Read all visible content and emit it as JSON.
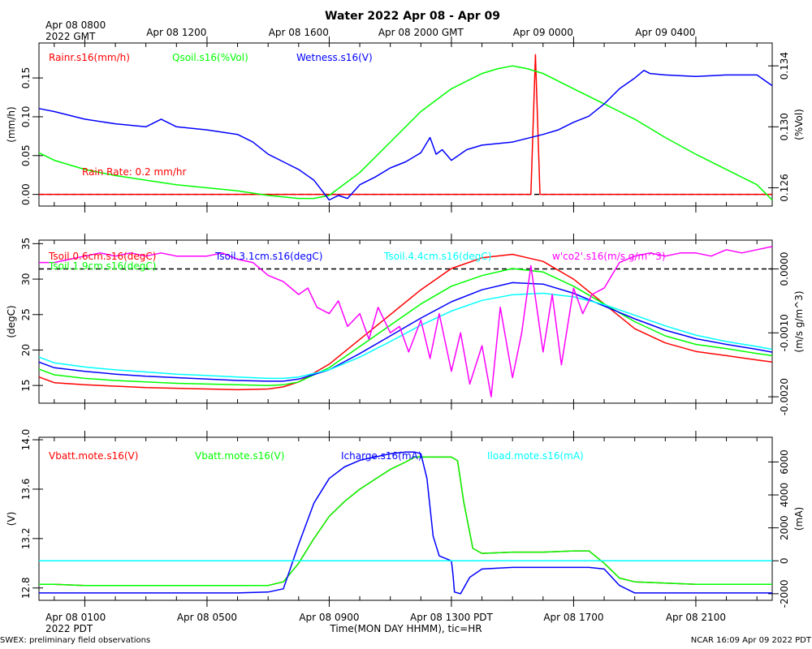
{
  "header": {
    "title": "Water 2022 Apr 08 - Apr 09",
    "top_first_tick_line1": "Apr 08 0800",
    "top_first_tick_line2": "2022 GMT",
    "bottom_first_tick_line2": "2022 PDT",
    "xlabel": "Time(MON DAY HHMM), tic=HR"
  },
  "footer": {
    "left": "SWEX: preliminary field observations",
    "right": "NCAR 16:09 Apr 09 2022 PDT"
  },
  "colors": {
    "red": "#ff0000",
    "green": "#00ff00",
    "blue": "#0000ff",
    "cyan": "#00ffff",
    "magenta": "#ff00ff"
  },
  "chart_data": [
    {
      "type": "line",
      "title": "Rain / soil moisture / wetness",
      "x_unit": "hours since Apr 08 0000 PDT",
      "xlim": [
        -0.5,
        23.5
      ],
      "top_ticks": [
        {
          "x": 4,
          "label": "Apr 08 1200"
        },
        {
          "x": 8,
          "label": "Apr 08 1600"
        },
        {
          "x": 12,
          "label": "Apr 08 2000 GMT"
        },
        {
          "x": 16,
          "label": "Apr 09 0000"
        },
        {
          "x": 20,
          "label": "Apr 09 0400"
        }
      ],
      "left_axis": {
        "label": "(mm/h)",
        "ylim": [
          -0.015,
          0.195
        ],
        "ticks": [
          "0.00",
          "0.05",
          "0.10",
          "0.15"
        ]
      },
      "right_axis": {
        "label": "(%Vol)",
        "ylim": [
          0.1248,
          0.1355
        ],
        "ticks": [
          "0.126",
          "0.130",
          "0.134"
        ]
      },
      "annotation": "Rain Rate: 0.2 mm/hr",
      "series": [
        {
          "name": "Rainr.s16(mm/h)",
          "color": "red",
          "axis": "left",
          "x": [
            -0.5,
            15.6,
            15.75,
            15.9,
            23.5
          ],
          "y": [
            0,
            0,
            0.18,
            0,
            0
          ]
        },
        {
          "name": "Qsoil.s16(%Vol)",
          "color": "green",
          "axis": "right",
          "x": [
            -0.5,
            0,
            1,
            2,
            3,
            4,
            5,
            6,
            7,
            8,
            8.5,
            9,
            10,
            11,
            12,
            13,
            14,
            14.5,
            15,
            15.5,
            16,
            17,
            18,
            19,
            20,
            21,
            22,
            23,
            23.5
          ],
          "y": [
            0.1283,
            0.1278,
            0.1272,
            0.1268,
            0.1265,
            0.1262,
            0.126,
            0.1258,
            0.1255,
            0.1253,
            0.1253,
            0.1255,
            0.127,
            0.129,
            0.131,
            0.1325,
            0.1335,
            0.1338,
            0.134,
            0.1338,
            0.1335,
            0.1325,
            0.1315,
            0.1305,
            0.1293,
            0.1282,
            0.1272,
            0.1262,
            0.1252
          ]
        },
        {
          "name": "Wetness.s16(V)",
          "color": "blue",
          "axis": "right",
          "x": [
            -0.5,
            0,
            1,
            2,
            3,
            3.5,
            4,
            5,
            6,
            6.5,
            7,
            7.5,
            8,
            8.5,
            9,
            9.3,
            9.6,
            10,
            10.5,
            11,
            11.5,
            12,
            12.3,
            12.5,
            12.7,
            13,
            13.5,
            14,
            15,
            16,
            16.5,
            17,
            17.5,
            18,
            18.5,
            19,
            19.3,
            19.5,
            20,
            21,
            22,
            22.5,
            23,
            23.5
          ],
          "y": [
            0.1312,
            0.131,
            0.1305,
            0.1302,
            0.13,
            0.1305,
            0.13,
            0.1298,
            0.1295,
            0.129,
            0.1282,
            0.1277,
            0.1272,
            0.1265,
            0.1252,
            0.1255,
            0.1253,
            0.1262,
            0.1267,
            0.1273,
            0.1277,
            0.1283,
            0.1293,
            0.1282,
            0.1285,
            0.1278,
            0.1285,
            0.1288,
            0.129,
            0.1295,
            0.1298,
            0.1303,
            0.1307,
            0.1315,
            0.1325,
            0.1332,
            0.1337,
            0.1335,
            0.1334,
            0.1333,
            0.1334,
            0.1334,
            0.1334,
            0.1327
          ]
        }
      ],
      "dashed_zero": {
        "axis": "left",
        "y": 0
      }
    },
    {
      "type": "line",
      "title": "Soil temperature / co2 flux",
      "x_unit": "hours since Apr 08 0000 PDT",
      "xlim": [
        -0.5,
        23.5
      ],
      "left_axis": {
        "label": "(degC)",
        "ylim": [
          12.5,
          35.5
        ],
        "ticks": [
          "15",
          "20",
          "25",
          "30",
          "35"
        ]
      },
      "right_axis": {
        "label": "(m/s g/m^3)",
        "ylim": [
          -0.0021,
          0.00045
        ],
        "ticks": [
          "-0.0020",
          "-0.0010",
          "0.0000"
        ]
      },
      "series": [
        {
          "name": "Tsoil.0.6cm.s16(degC)",
          "color": "red",
          "axis": "left",
          "x": [
            -0.5,
            0,
            1,
            2,
            3,
            4,
            5,
            6,
            7,
            7.5,
            8,
            9,
            10,
            11,
            12,
            13,
            14,
            15,
            16,
            17,
            18,
            19,
            20,
            21,
            22,
            23,
            23.5
          ],
          "y": [
            16.2,
            15.4,
            15.1,
            14.9,
            14.7,
            14.6,
            14.5,
            14.4,
            14.5,
            14.8,
            15.5,
            18,
            21.5,
            25,
            28.5,
            31.5,
            33,
            33.5,
            32.5,
            30,
            26.5,
            23,
            21,
            19.8,
            19.2,
            18.6,
            18.3
          ]
        },
        {
          "name": "Tsoil.1.9cm.s16(degC)",
          "color": "green",
          "axis": "left",
          "x": [
            -0.5,
            0,
            1,
            2,
            3,
            4,
            5,
            6,
            7,
            7.5,
            8,
            9,
            10,
            11,
            12,
            13,
            14,
            15,
            16,
            17,
            18,
            19,
            20,
            21,
            22,
            23,
            23.5
          ],
          "y": [
            17.3,
            16.5,
            16,
            15.7,
            15.5,
            15.3,
            15.2,
            15.1,
            15,
            15.1,
            15.5,
            17.5,
            20.5,
            23.5,
            26.5,
            29,
            30.5,
            31.5,
            31,
            29,
            26.5,
            24,
            22,
            20.8,
            20.2,
            19.5,
            19.2
          ]
        },
        {
          "name": "Tsoil.3.1cm.s16(degC)",
          "color": "blue",
          "axis": "left",
          "x": [
            -0.5,
            0,
            1,
            2,
            3,
            4,
            5,
            6,
            7,
            7.5,
            8,
            9,
            10,
            11,
            12,
            13,
            14,
            15,
            16,
            17,
            18,
            19,
            20,
            21,
            22,
            23,
            23.5
          ],
          "y": [
            18.3,
            17.5,
            17,
            16.6,
            16.3,
            16.1,
            15.9,
            15.7,
            15.6,
            15.6,
            15.9,
            17.2,
            19.5,
            22,
            24.5,
            26.8,
            28.5,
            29.5,
            29.3,
            28,
            26.2,
            24.4,
            22.8,
            21.6,
            20.8,
            20.1,
            19.7
          ]
        },
        {
          "name": "Tsoil.4.4cm.s16(degC)",
          "color": "cyan",
          "axis": "left",
          "x": [
            -0.5,
            0,
            1,
            2,
            3,
            4,
            5,
            6,
            7,
            7.5,
            8,
            9,
            10,
            11,
            12,
            13,
            14,
            15,
            16,
            17,
            18,
            19,
            20,
            21,
            22,
            23,
            23.5
          ],
          "y": [
            19,
            18.2,
            17.6,
            17.2,
            16.9,
            16.6,
            16.4,
            16.2,
            16,
            16,
            16.2,
            17.2,
            19,
            21.2,
            23.5,
            25.5,
            27,
            27.8,
            28,
            27.5,
            26.4,
            24.9,
            23.4,
            22.1,
            21.2,
            20.5,
            20.1
          ]
        },
        {
          "name": "w'co2'.s16(m/s g/m^3)",
          "color": "magenta",
          "axis": "right",
          "x": [
            -0.5,
            0,
            0.5,
            1,
            1.5,
            2,
            2.5,
            3,
            3.5,
            4,
            4.5,
            5,
            5.5,
            6,
            6.5,
            7,
            7.5,
            8,
            8.3,
            8.6,
            9,
            9.3,
            9.6,
            10,
            10.3,
            10.6,
            11,
            11.3,
            11.6,
            12,
            12.3,
            12.6,
            13,
            13.3,
            13.6,
            14,
            14.3,
            14.6,
            15,
            15.3,
            15.6,
            16,
            16.3,
            16.6,
            17,
            17.3,
            17.6,
            18,
            18.5,
            19,
            19.5,
            20,
            20.5,
            21,
            21.5,
            22,
            22.5,
            23,
            23.5
          ],
          "y": [
            0.0001,
            0.0001,
            0.00015,
            0.0002,
            0.00025,
            0.0002,
            0.00025,
            0.0002,
            0.00025,
            0.0002,
            0.0002,
            0.0002,
            0.00025,
            0.00015,
            0.0001,
            -0.0001,
            -0.0002,
            -0.0004,
            -0.0003,
            -0.0006,
            -0.0007,
            -0.0005,
            -0.0009,
            -0.0007,
            -0.0011,
            -0.0006,
            -0.001,
            -0.0009,
            -0.0013,
            -0.0008,
            -0.0014,
            -0.0007,
            -0.0016,
            -0.001,
            -0.0018,
            -0.0012,
            -0.002,
            -0.0006,
            -0.0017,
            -0.001,
            5e-05,
            -0.0013,
            -0.0004,
            -0.0015,
            -0.0003,
            -0.0007,
            -0.0004,
            -0.0003,
            0.0001,
            0.0002,
            0.00025,
            0.0002,
            0.00025,
            0.00025,
            0.0002,
            0.0003,
            0.00025,
            0.0003,
            0.00035
          ]
        }
      ],
      "dashed_zero": {
        "axis": "right",
        "y": 0
      }
    },
    {
      "type": "line",
      "title": "Mote power",
      "x_unit": "hours since Apr 08 0000 PDT",
      "xlim": [
        -0.5,
        23.5
      ],
      "bottom_ticks": [
        {
          "x": 1,
          "label": "Apr 08 0100"
        },
        {
          "x": 5,
          "label": "Apr 08 0500"
        },
        {
          "x": 9,
          "label": "Apr 08 0900"
        },
        {
          "x": 13,
          "label": "Apr 08 1300 PDT"
        },
        {
          "x": 17,
          "label": "Apr 08 1700"
        },
        {
          "x": 21,
          "label": "Apr 08 2100"
        }
      ],
      "left_axis": {
        "label": "(V)",
        "ylim": [
          12.7,
          14.02
        ],
        "ticks": [
          "12.8",
          "13.2",
          "13.6",
          "14.0"
        ]
      },
      "right_axis": {
        "label": "(mA)",
        "ylim": [
          -2400,
          7500
        ],
        "ticks": [
          "-2000",
          "0",
          "2000",
          "4000",
          "6000"
        ]
      },
      "series": [
        {
          "name": "Vbatt.mote.s16(V)",
          "color": "red",
          "axis": "left",
          "x": [
            -0.5,
            0,
            1,
            2,
            3,
            4,
            5,
            6,
            7,
            7.5,
            8,
            8.5,
            9,
            9.5,
            10,
            10.5,
            11,
            11.5,
            11.8,
            12,
            12.5,
            13,
            13.2,
            13.4,
            13.7,
            14,
            15,
            16,
            17,
            17.5,
            18,
            18.5,
            19,
            20,
            21,
            22,
            23,
            23.5
          ],
          "y": [
            12.83,
            12.83,
            12.82,
            12.82,
            12.82,
            12.82,
            12.82,
            12.82,
            12.82,
            12.85,
            13.0,
            13.2,
            13.38,
            13.5,
            13.6,
            13.68,
            13.76,
            13.82,
            13.86,
            13.86,
            13.86,
            13.86,
            13.83,
            13.5,
            13.12,
            13.08,
            13.09,
            13.09,
            13.1,
            13.1,
            13.0,
            12.88,
            12.85,
            12.84,
            12.83,
            12.83,
            12.83,
            12.83
          ]
        },
        {
          "name": "Vbatt.mote.s16(V)",
          "color": "green",
          "axis": "left",
          "x": [
            -0.5,
            0,
            1,
            2,
            3,
            4,
            5,
            6,
            7,
            7.5,
            8,
            8.5,
            9,
            9.5,
            10,
            10.5,
            11,
            11.5,
            11.8,
            12,
            12.5,
            13,
            13.2,
            13.4,
            13.7,
            14,
            15,
            16,
            17,
            17.5,
            18,
            18.5,
            19,
            20,
            21,
            22,
            23,
            23.5
          ],
          "y": [
            12.83,
            12.83,
            12.82,
            12.82,
            12.82,
            12.82,
            12.82,
            12.82,
            12.82,
            12.85,
            13.0,
            13.2,
            13.38,
            13.5,
            13.6,
            13.68,
            13.76,
            13.82,
            13.86,
            13.86,
            13.86,
            13.86,
            13.83,
            13.5,
            13.12,
            13.08,
            13.09,
            13.09,
            13.1,
            13.1,
            13.0,
            12.88,
            12.85,
            12.84,
            12.83,
            12.83,
            12.83,
            12.83
          ]
        },
        {
          "name": "Icharge.s16(mA)",
          "color": "blue",
          "axis": "right",
          "x": [
            -0.5,
            0,
            1,
            2,
            3,
            4,
            5,
            6,
            7,
            7.5,
            8,
            8.5,
            9,
            9.5,
            10,
            10.5,
            11,
            11.5,
            11.8,
            12,
            12.2,
            12.4,
            12.6,
            13,
            13.05,
            13.1,
            13.3,
            13.6,
            14,
            15,
            16,
            17,
            17.5,
            18,
            18.5,
            19,
            20,
            21,
            22,
            23,
            23.5
          ],
          "y": [
            -1950,
            -1950,
            -1950,
            -1950,
            -1950,
            -1950,
            -1950,
            -1950,
            -1900,
            -1700,
            1000,
            3500,
            5000,
            5700,
            6100,
            6300,
            6500,
            6600,
            6600,
            6500,
            5000,
            1500,
            300,
            0,
            -800,
            -1900,
            -2000,
            -1000,
            -500,
            -400,
            -400,
            -400,
            -400,
            -500,
            -1500,
            -1950,
            -1950,
            -1950,
            -1950,
            -1950,
            -1950
          ]
        },
        {
          "name": "Iload.mote.s16(mA)",
          "color": "cyan",
          "axis": "right",
          "x": [
            -0.5,
            23.5
          ],
          "y": [
            0,
            0
          ]
        }
      ],
      "dashed_zero": {
        "axis": "right",
        "y": 0
      }
    }
  ]
}
